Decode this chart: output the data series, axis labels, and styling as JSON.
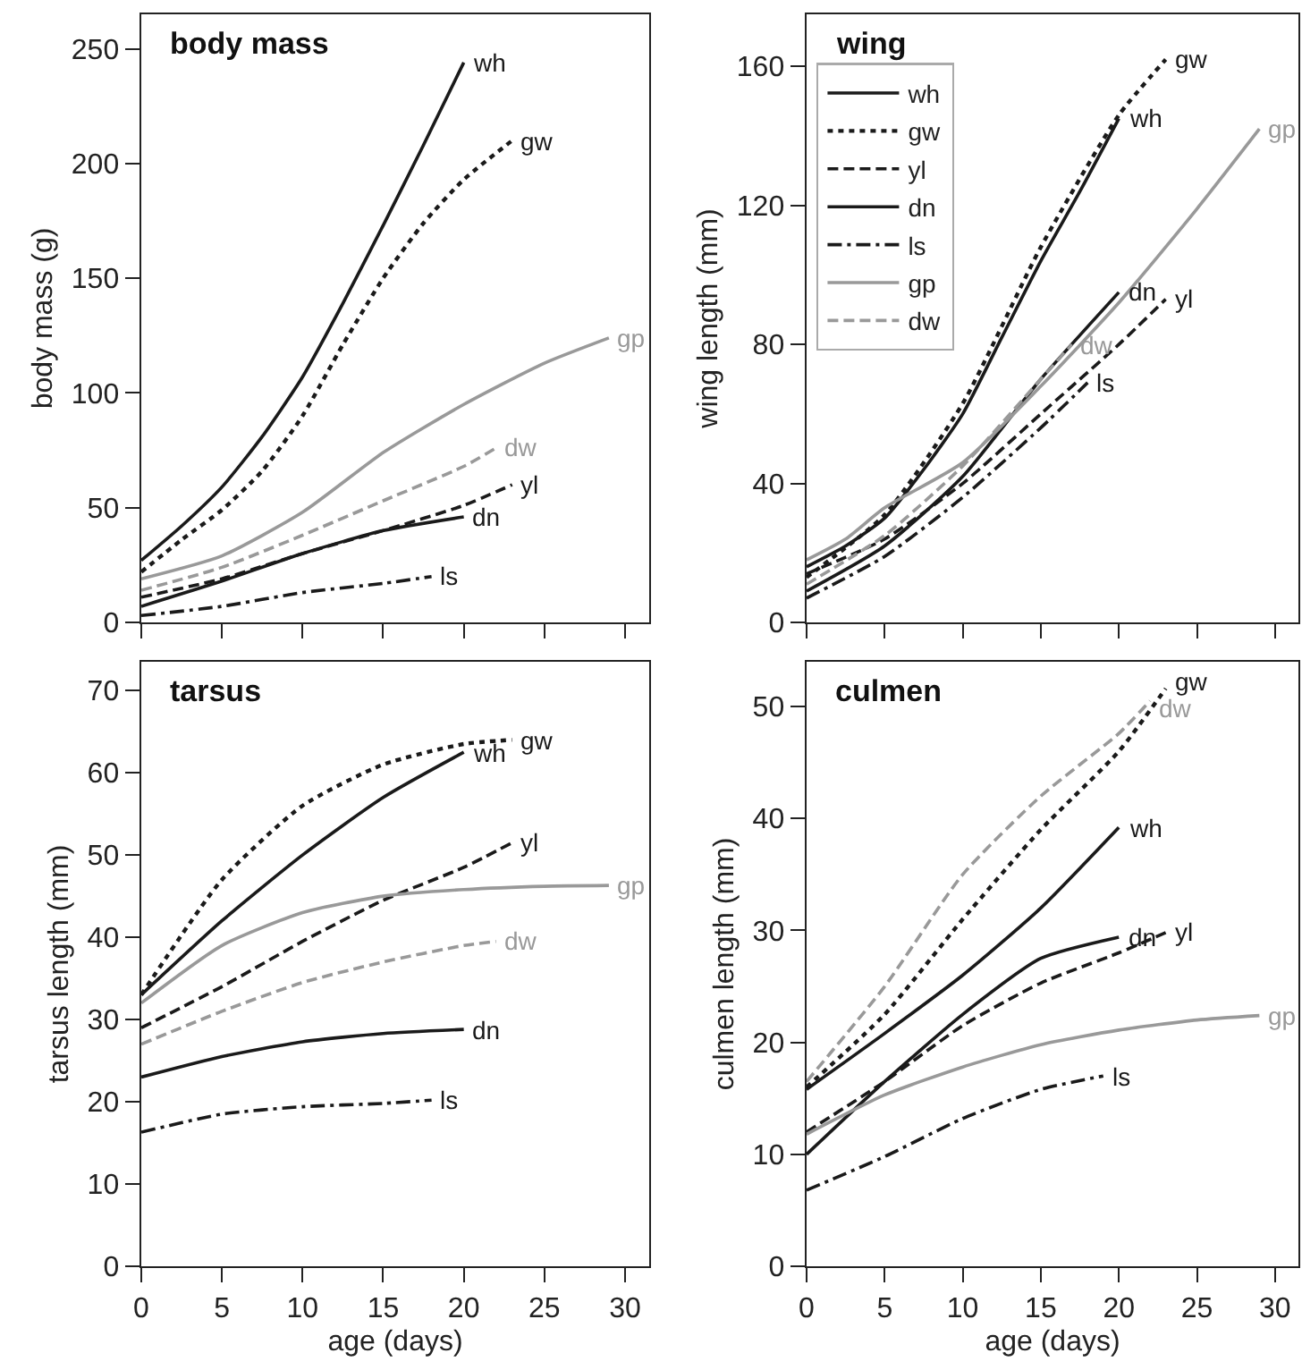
{
  "chart_data": [
    {
      "type": "line",
      "title": "body mass",
      "ylabel": "body mass (g)",
      "xlim": [
        0,
        31.5
      ],
      "ylim": [
        0,
        265
      ],
      "xticks": [
        0,
        5,
        10,
        15,
        20,
        25,
        30
      ],
      "yticks": [
        0,
        50,
        100,
        150,
        200,
        250
      ],
      "tick_labels": "y",
      "grid": false,
      "legend": false,
      "series": [
        {
          "name": "wh",
          "color": "#1a1a1a",
          "line_style": "solid",
          "x": [
            0,
            2.5,
            5,
            7.5,
            10,
            12.5,
            15,
            17.5,
            20
          ],
          "values": [
            27,
            42,
            59,
            81,
            107,
            139,
            173,
            208,
            244
          ]
        },
        {
          "name": "gw",
          "color": "#1a1a1a",
          "line_style": "dotted",
          "x": [
            0,
            2.5,
            5,
            7.5,
            10,
            12.5,
            15,
            17.5,
            20,
            23
          ],
          "values": [
            22,
            36,
            49,
            66,
            90,
            121,
            150,
            174,
            193,
            210
          ]
        },
        {
          "name": "yl",
          "color": "#1a1a1a",
          "line_style": "dashed",
          "x": [
            0,
            5,
            10,
            15,
            20,
            23
          ],
          "values": [
            11,
            19,
            30,
            40,
            51,
            60
          ]
        },
        {
          "name": "dn",
          "color": "#1a1a1a",
          "line_style": "solid",
          "x": [
            0,
            5,
            10,
            15,
            20
          ],
          "values": [
            7,
            18,
            30,
            40,
            46
          ]
        },
        {
          "name": "ls",
          "color": "#1a1a1a",
          "line_style": "dashdot",
          "x": [
            0,
            5,
            10,
            15,
            18
          ],
          "values": [
            3,
            7,
            13,
            17,
            20
          ]
        },
        {
          "name": "gp",
          "color": "#999999",
          "line_style": "solid",
          "x": [
            0,
            5,
            10,
            15,
            20,
            25,
            29
          ],
          "values": [
            19,
            29,
            48,
            74,
            95,
            113,
            124
          ]
        },
        {
          "name": "dw",
          "color": "#999999",
          "line_style": "dashed",
          "x": [
            0,
            5,
            10,
            15,
            20,
            22
          ],
          "values": [
            14,
            24,
            38,
            53,
            68,
            76
          ]
        }
      ]
    },
    {
      "type": "line",
      "title": "wing",
      "ylabel": "wing length (mm)",
      "xlim": [
        0,
        31.5
      ],
      "ylim": [
        0,
        175
      ],
      "xticks": [
        0,
        5,
        10,
        15,
        20,
        25,
        30
      ],
      "yticks": [
        0,
        40,
        80,
        120,
        160
      ],
      "tick_labels": "y",
      "grid": false,
      "legend": "top left",
      "series": [
        {
          "name": "wh",
          "color": "#1a1a1a",
          "line_style": "solid",
          "x": [
            0,
            2.5,
            5,
            7.5,
            10,
            12.5,
            15,
            17.5,
            20
          ],
          "values": [
            16,
            22,
            30,
            44,
            60,
            82,
            104,
            124,
            145
          ]
        },
        {
          "name": "gw",
          "color": "#1a1a1a",
          "line_style": "dotted",
          "x": [
            0,
            5,
            10,
            15,
            20,
            23
          ],
          "values": [
            13,
            31,
            63,
            108,
            146,
            162
          ]
        },
        {
          "name": "yl",
          "color": "#1a1a1a",
          "line_style": "dashed",
          "x": [
            0,
            5,
            10,
            15,
            20,
            23
          ],
          "values": [
            14,
            24,
            40,
            60,
            80,
            93
          ]
        },
        {
          "name": "dn",
          "color": "#1a1a1a",
          "line_style": "solid",
          "x": [
            0,
            5,
            10,
            15,
            20
          ],
          "values": [
            9,
            22,
            42,
            70,
            95
          ]
        },
        {
          "name": "ls",
          "color": "#1a1a1a",
          "line_style": "dashdot",
          "x": [
            0,
            5,
            10,
            15,
            18
          ],
          "values": [
            7,
            19,
            36,
            56,
            69
          ]
        },
        {
          "name": "gp",
          "color": "#999999",
          "line_style": "solid",
          "x": [
            0,
            2.5,
            5,
            10,
            15,
            20,
            25,
            29
          ],
          "values": [
            18,
            24,
            33,
            46,
            68,
            92,
            119,
            142
          ]
        },
        {
          "name": "dw",
          "color": "#999999",
          "line_style": "dashed",
          "x": [
            0,
            5,
            10,
            15,
            17
          ],
          "values": [
            11,
            25,
            45,
            70,
            80
          ]
        }
      ]
    },
    {
      "type": "line",
      "title": "tarsus",
      "xlabel": "age (days)",
      "ylabel": "tarsus length (mm)",
      "xlim": [
        0,
        31.5
      ],
      "ylim": [
        0,
        73.5
      ],
      "xticks": [
        0,
        5,
        10,
        15,
        20,
        25,
        30
      ],
      "yticks": [
        0,
        10,
        20,
        30,
        40,
        50,
        60,
        70
      ],
      "grid": false,
      "legend": false,
      "series": [
        {
          "name": "wh",
          "color": "#1a1a1a",
          "line_style": "solid",
          "x": [
            0,
            5,
            10,
            15,
            20
          ],
          "values": [
            33,
            42,
            50,
            57,
            62.5
          ]
        },
        {
          "name": "gw",
          "color": "#1a1a1a",
          "line_style": "dotted",
          "x": [
            0,
            5,
            10,
            15,
            20,
            23
          ],
          "values": [
            33,
            47,
            56,
            61,
            63.5,
            64
          ]
        },
        {
          "name": "yl",
          "color": "#1a1a1a",
          "line_style": "dashed",
          "x": [
            0,
            5,
            10,
            15,
            20,
            23
          ],
          "values": [
            29,
            34,
            39.5,
            44.5,
            48.5,
            51.5
          ]
        },
        {
          "name": "dn",
          "color": "#1a1a1a",
          "line_style": "solid",
          "x": [
            0,
            5,
            10,
            15,
            20
          ],
          "values": [
            23,
            25.5,
            27.3,
            28.3,
            28.8
          ]
        },
        {
          "name": "ls",
          "color": "#1a1a1a",
          "line_style": "dashdot",
          "x": [
            0,
            5,
            10,
            15,
            18
          ],
          "values": [
            16.3,
            18.5,
            19.4,
            19.8,
            20.2
          ]
        },
        {
          "name": "gp",
          "color": "#999999",
          "line_style": "solid",
          "x": [
            0,
            5,
            10,
            15,
            20,
            25,
            29
          ],
          "values": [
            32,
            39,
            43,
            45,
            45.8,
            46.2,
            46.3
          ]
        },
        {
          "name": "dw",
          "color": "#999999",
          "line_style": "dashed",
          "x": [
            0,
            5,
            10,
            15,
            20,
            22
          ],
          "values": [
            27,
            31,
            34.5,
            37,
            39,
            39.5
          ]
        }
      ]
    },
    {
      "type": "line",
      "title": "culmen",
      "xlabel": "age (days)",
      "ylabel": "culmen length (mm)",
      "xlim": [
        0,
        31.5
      ],
      "ylim": [
        0,
        54
      ],
      "xticks": [
        0,
        5,
        10,
        15,
        20,
        25,
        30
      ],
      "yticks": [
        0,
        10,
        20,
        30,
        40,
        50
      ],
      "grid": false,
      "legend": false,
      "series": [
        {
          "name": "wh",
          "color": "#1a1a1a",
          "line_style": "solid",
          "x": [
            0,
            5,
            10,
            15,
            20
          ],
          "values": [
            15.8,
            20.8,
            26,
            32,
            39.2
          ]
        },
        {
          "name": "gw",
          "color": "#1a1a1a",
          "line_style": "dotted",
          "x": [
            0,
            5,
            10,
            15,
            20,
            23
          ],
          "values": [
            16,
            22.5,
            31,
            39,
            46,
            51.6
          ]
        },
        {
          "name": "yl",
          "color": "#1a1a1a",
          "line_style": "dashed",
          "x": [
            0,
            5,
            10,
            15,
            20,
            23
          ],
          "values": [
            12,
            16.5,
            21.5,
            25.3,
            28,
            29.8
          ]
        },
        {
          "name": "dn",
          "color": "#1a1a1a",
          "line_style": "solid",
          "x": [
            0,
            5,
            10,
            15,
            20
          ],
          "values": [
            10,
            16.5,
            22.5,
            27.5,
            29.4
          ]
        },
        {
          "name": "ls",
          "color": "#1a1a1a",
          "line_style": "dashdot",
          "x": [
            0,
            5,
            10,
            15,
            19
          ],
          "values": [
            6.8,
            9.8,
            13.2,
            15.8,
            17
          ]
        },
        {
          "name": "gp",
          "color": "#999999",
          "line_style": "solid",
          "x": [
            0,
            5,
            10,
            15,
            20,
            25,
            29
          ],
          "values": [
            11.8,
            15.3,
            17.8,
            19.8,
            21.1,
            22,
            22.4
          ]
        },
        {
          "name": "dw",
          "color": "#999999",
          "line_style": "dashed",
          "x": [
            0,
            5,
            10,
            15,
            20,
            22
          ],
          "values": [
            16.5,
            25,
            35,
            42,
            47.6,
            50.5
          ]
        }
      ]
    }
  ]
}
